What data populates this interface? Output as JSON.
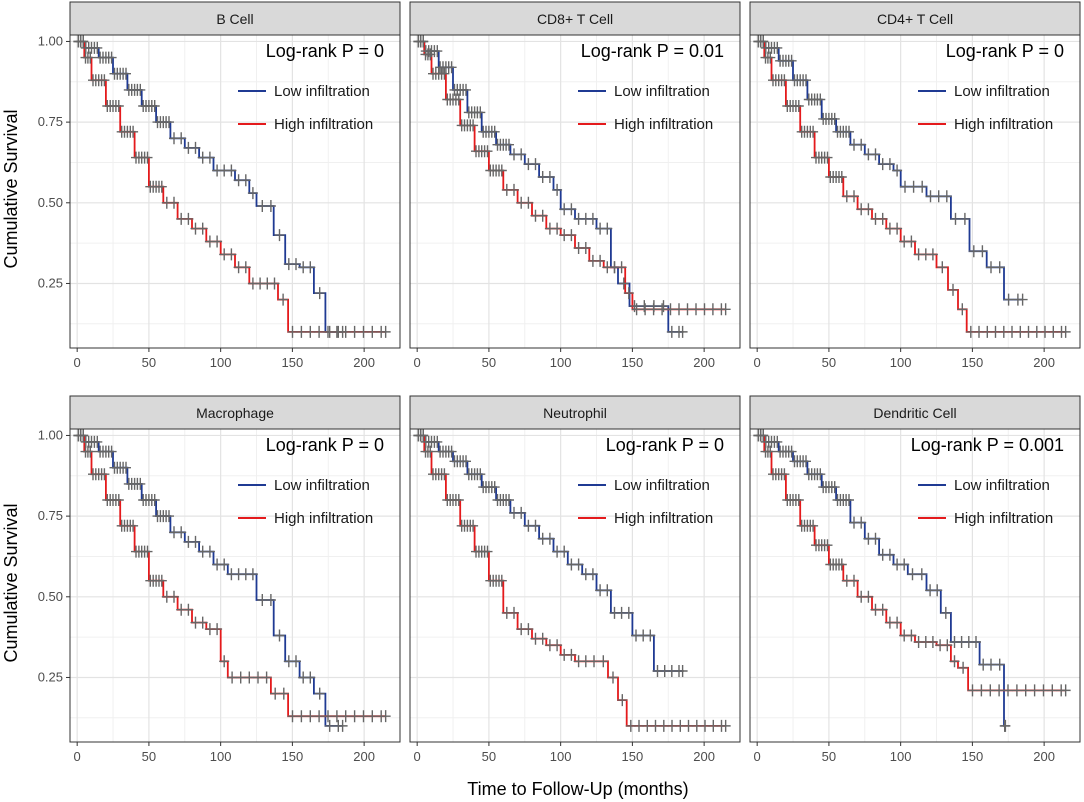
{
  "figure": {
    "ylabel": "Cumulative Survival",
    "xlabel": "Time to Follow-Up (months)"
  },
  "colors": {
    "low": "#1f3a93",
    "high": "#e41a1c",
    "censor": "#666666",
    "strip": "#d9d9d9"
  },
  "chart_data": [
    {
      "type": "line",
      "title": "B Cell",
      "annotation": "Log-rank P = 0",
      "xlim": [
        -5,
        225
      ],
      "ylim": [
        0.05,
        1.02
      ],
      "xticks": [
        0,
        50,
        100,
        150,
        200
      ],
      "yticks": [
        0.25,
        0.5,
        0.75,
        1.0
      ],
      "ytick_labels": [
        "0.25",
        "0.50",
        "0.75",
        "1.00"
      ],
      "legend": [
        "Low infiltration",
        "High infiltration"
      ],
      "series": [
        {
          "name": "Low infiltration",
          "x": [
            0,
            5,
            15,
            25,
            35,
            45,
            55,
            65,
            75,
            85,
            95,
            110,
            120,
            125,
            133,
            137,
            145,
            155,
            165,
            173,
            185
          ],
          "values": [
            1.0,
            0.98,
            0.95,
            0.9,
            0.85,
            0.8,
            0.75,
            0.7,
            0.67,
            0.64,
            0.6,
            0.57,
            0.53,
            0.49,
            0.49,
            0.4,
            0.31,
            0.3,
            0.22,
            0.1,
            0.1
          ]
        },
        {
          "name": "High infiltration",
          "x": [
            0,
            5,
            10,
            20,
            30,
            40,
            50,
            60,
            70,
            80,
            90,
            100,
            110,
            120,
            130,
            140,
            147,
            215
          ],
          "values": [
            1.0,
            0.95,
            0.88,
            0.8,
            0.72,
            0.64,
            0.55,
            0.5,
            0.45,
            0.42,
            0.38,
            0.34,
            0.3,
            0.25,
            0.25,
            0.2,
            0.1,
            0.1
          ]
        }
      ]
    },
    {
      "type": "line",
      "title": "CD8+ T Cell",
      "annotation": "Log-rank P = 0.01",
      "xlim": [
        -5,
        225
      ],
      "ylim": [
        0.05,
        1.02
      ],
      "xticks": [
        0,
        50,
        100,
        150,
        200
      ],
      "yticks": [
        0.25,
        0.5,
        0.75,
        1.0
      ],
      "ytick_labels": [
        "0.25",
        "0.50",
        "0.75",
        "1.00"
      ],
      "legend": [
        "Low infiltration",
        "High infiltration"
      ],
      "series": [
        {
          "name": "Low infiltration",
          "x": [
            0,
            5,
            15,
            25,
            35,
            45,
            55,
            65,
            75,
            85,
            95,
            100,
            110,
            125,
            135,
            140,
            148,
            155,
            175,
            185
          ],
          "values": [
            1.0,
            0.97,
            0.92,
            0.85,
            0.78,
            0.72,
            0.68,
            0.65,
            0.62,
            0.58,
            0.54,
            0.48,
            0.45,
            0.42,
            0.3,
            0.25,
            0.18,
            0.18,
            0.1,
            0.1
          ]
        },
        {
          "name": "High infiltration",
          "x": [
            0,
            5,
            10,
            20,
            30,
            40,
            50,
            60,
            70,
            80,
            90,
            100,
            110,
            120,
            130,
            145,
            150,
            215
          ],
          "values": [
            1.0,
            0.96,
            0.9,
            0.82,
            0.74,
            0.66,
            0.6,
            0.54,
            0.5,
            0.46,
            0.42,
            0.4,
            0.36,
            0.32,
            0.3,
            0.22,
            0.17,
            0.17
          ]
        }
      ]
    },
    {
      "type": "line",
      "title": "CD4+ T Cell",
      "annotation": "Log-rank P = 0",
      "xlim": [
        -5,
        225
      ],
      "ylim": [
        0.05,
        1.02
      ],
      "xticks": [
        0,
        50,
        100,
        150,
        200
      ],
      "yticks": [
        0.25,
        0.5,
        0.75,
        1.0
      ],
      "ytick_labels": [
        "0.25",
        "0.50",
        "0.75",
        "1.00"
      ],
      "legend": [
        "Low infiltration",
        "High infiltration"
      ],
      "series": [
        {
          "name": "Low infiltration",
          "x": [
            0,
            5,
            15,
            25,
            35,
            45,
            55,
            65,
            75,
            85,
            95,
            100,
            118,
            135,
            148,
            160,
            172,
            185
          ],
          "values": [
            1.0,
            0.98,
            0.94,
            0.88,
            0.82,
            0.76,
            0.72,
            0.68,
            0.65,
            0.62,
            0.6,
            0.55,
            0.52,
            0.45,
            0.35,
            0.3,
            0.2,
            0.2
          ]
        },
        {
          "name": "High infiltration",
          "x": [
            0,
            5,
            10,
            20,
            30,
            40,
            50,
            60,
            70,
            80,
            90,
            100,
            110,
            125,
            133,
            140,
            146,
            215
          ],
          "values": [
            1.0,
            0.95,
            0.88,
            0.8,
            0.72,
            0.64,
            0.58,
            0.52,
            0.48,
            0.45,
            0.42,
            0.38,
            0.34,
            0.3,
            0.23,
            0.17,
            0.1,
            0.1
          ]
        }
      ]
    },
    {
      "type": "line",
      "title": "Macrophage",
      "annotation": "Log-rank P = 0",
      "xlim": [
        -5,
        225
      ],
      "ylim": [
        0.05,
        1.02
      ],
      "xticks": [
        0,
        50,
        100,
        150,
        200
      ],
      "yticks": [
        0.25,
        0.5,
        0.75,
        1.0
      ],
      "ytick_labels": [
        "0.25",
        "0.50",
        "0.75",
        "1.00"
      ],
      "legend": [
        "Low infiltration",
        "High infiltration"
      ],
      "series": [
        {
          "name": "Low infiltration",
          "x": [
            0,
            5,
            15,
            25,
            35,
            45,
            55,
            65,
            75,
            85,
            95,
            105,
            120,
            125,
            133,
            137,
            145,
            155,
            165,
            173,
            185
          ],
          "values": [
            1.0,
            0.98,
            0.95,
            0.9,
            0.85,
            0.8,
            0.75,
            0.7,
            0.67,
            0.64,
            0.6,
            0.57,
            0.57,
            0.49,
            0.49,
            0.38,
            0.3,
            0.25,
            0.2,
            0.1,
            0.1
          ]
        },
        {
          "name": "High infiltration",
          "x": [
            0,
            5,
            10,
            20,
            30,
            40,
            50,
            60,
            70,
            80,
            90,
            100,
            105,
            135,
            147,
            215
          ],
          "values": [
            1.0,
            0.95,
            0.88,
            0.8,
            0.72,
            0.64,
            0.55,
            0.5,
            0.46,
            0.42,
            0.4,
            0.3,
            0.25,
            0.2,
            0.13,
            0.13
          ]
        }
      ]
    },
    {
      "type": "line",
      "title": "Neutrophil",
      "annotation": "Log-rank P = 0",
      "xlim": [
        -5,
        225
      ],
      "ylim": [
        0.05,
        1.02
      ],
      "xticks": [
        0,
        50,
        100,
        150,
        200
      ],
      "yticks": [
        0.25,
        0.5,
        0.75,
        1.0
      ],
      "ytick_labels": [
        "0.25",
        "0.50",
        "0.75",
        "1.00"
      ],
      "legend": [
        "Low infiltration",
        "High infiltration"
      ],
      "series": [
        {
          "name": "Low infiltration",
          "x": [
            0,
            5,
            15,
            25,
            35,
            45,
            55,
            65,
            75,
            85,
            95,
            105,
            115,
            125,
            135,
            150,
            165,
            170,
            185
          ],
          "values": [
            1.0,
            0.98,
            0.95,
            0.92,
            0.88,
            0.84,
            0.8,
            0.76,
            0.72,
            0.68,
            0.64,
            0.6,
            0.57,
            0.52,
            0.45,
            0.38,
            0.27,
            0.27,
            0.27
          ]
        },
        {
          "name": "High infiltration",
          "x": [
            0,
            5,
            10,
            20,
            30,
            40,
            50,
            60,
            70,
            80,
            90,
            100,
            110,
            120,
            133,
            140,
            146,
            215
          ],
          "values": [
            1.0,
            0.95,
            0.88,
            0.8,
            0.72,
            0.64,
            0.55,
            0.45,
            0.4,
            0.37,
            0.35,
            0.32,
            0.3,
            0.3,
            0.25,
            0.18,
            0.1,
            0.1
          ]
        }
      ]
    },
    {
      "type": "line",
      "title": "Dendritic Cell",
      "annotation": "Log-rank P = 0.001",
      "xlim": [
        -5,
        225
      ],
      "ylim": [
        0.05,
        1.02
      ],
      "xticks": [
        0,
        50,
        100,
        150,
        200
      ],
      "yticks": [
        0.25,
        0.5,
        0.75,
        1.0
      ],
      "ytick_labels": [
        "0.25",
        "0.50",
        "0.75",
        "1.00"
      ],
      "legend": [
        "Low infiltration",
        "High infiltration"
      ],
      "series": [
        {
          "name": "Low infiltration",
          "x": [
            0,
            5,
            15,
            25,
            35,
            45,
            55,
            65,
            75,
            85,
            95,
            105,
            118,
            128,
            135,
            140,
            155,
            160,
            172,
            173
          ],
          "values": [
            1.0,
            0.98,
            0.95,
            0.92,
            0.88,
            0.84,
            0.8,
            0.73,
            0.68,
            0.63,
            0.6,
            0.57,
            0.52,
            0.45,
            0.36,
            0.36,
            0.29,
            0.29,
            0.1,
            0.1
          ]
        },
        {
          "name": "High infiltration",
          "x": [
            0,
            5,
            10,
            20,
            30,
            40,
            50,
            60,
            70,
            80,
            90,
            100,
            110,
            125,
            135,
            140,
            147,
            215
          ],
          "values": [
            1.0,
            0.95,
            0.88,
            0.8,
            0.72,
            0.66,
            0.6,
            0.55,
            0.5,
            0.46,
            0.42,
            0.38,
            0.36,
            0.35,
            0.3,
            0.28,
            0.21,
            0.21
          ]
        }
      ]
    }
  ]
}
